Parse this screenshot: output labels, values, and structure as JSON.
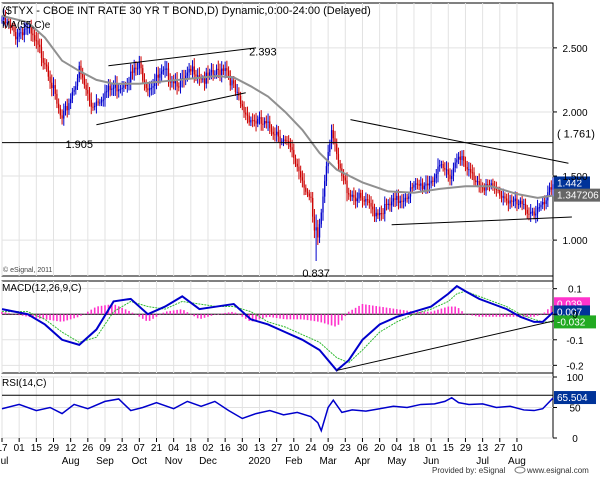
{
  "title": "($TYX - CBOE INT RATE 30 YR T BOND,D) Dynamic,0:00-24:00 (Delayed)",
  "footer": {
    "provided_by": "Provided by: eSignal",
    "url": "www.esignal.com",
    "copyright": "© eSignal, 2011"
  },
  "colors": {
    "up": "#0000cc",
    "down": "#cc0000",
    "ma": "#909090",
    "macd_line": "#0000cc",
    "macd_hist": "#ff33cc",
    "macd_signal": "#33bb33",
    "rsi": "#0000cc",
    "trend": "#000000",
    "current": "#003399",
    "ma_badge": "#666666",
    "signal_badge": "#22aa22"
  },
  "chart_data": [
    {
      "type": "candlestick",
      "panel": "price",
      "indicator_label": "MA(55,C)e",
      "ylim": [
        0.72,
        2.85
      ],
      "yticks": [
        1.0,
        1.5,
        2.0,
        2.5
      ],
      "ytick_labels": [
        "1.000",
        "1.500",
        "2.000",
        "2.500"
      ],
      "anchors": [
        [
          0,
          2.72
        ],
        [
          8,
          2.6
        ],
        [
          14,
          2.66
        ],
        [
          20,
          2.52
        ],
        [
          26,
          2.38
        ],
        [
          32,
          2.05
        ],
        [
          35,
          1.92
        ],
        [
          40,
          2.12
        ],
        [
          45,
          2.32
        ],
        [
          52,
          2.05
        ],
        [
          60,
          2.15
        ],
        [
          70,
          2.22
        ],
        [
          80,
          2.35
        ],
        [
          85,
          2.2
        ],
        [
          95,
          2.3
        ],
        [
          105,
          2.22
        ],
        [
          112,
          2.34
        ],
        [
          118,
          2.25
        ],
        [
          125,
          2.3
        ],
        [
          130,
          2.37
        ],
        [
          135,
          2.18
        ],
        [
          140,
          2.02
        ],
        [
          145,
          1.95
        ],
        [
          152,
          1.9
        ],
        [
          160,
          1.85
        ],
        [
          168,
          1.7
        ],
        [
          172,
          1.58
        ],
        [
          176,
          1.45
        ],
        [
          180,
          1.28
        ],
        [
          183,
          0.92
        ],
        [
          186,
          1.22
        ],
        [
          189,
          1.62
        ],
        [
          192,
          1.88
        ],
        [
          194,
          1.7
        ],
        [
          197,
          1.52
        ],
        [
          202,
          1.38
        ],
        [
          210,
          1.3
        ],
        [
          218,
          1.22
        ],
        [
          224,
          1.25
        ],
        [
          232,
          1.32
        ],
        [
          240,
          1.4
        ],
        [
          248,
          1.45
        ],
        [
          256,
          1.55
        ],
        [
          262,
          1.52
        ],
        [
          266,
          1.7
        ],
        [
          270,
          1.55
        ],
        [
          276,
          1.48
        ],
        [
          282,
          1.42
        ],
        [
          288,
          1.38
        ],
        [
          294,
          1.33
        ],
        [
          300,
          1.27
        ],
        [
          305,
          1.25
        ],
        [
          310,
          1.22
        ],
        [
          315,
          1.25
        ],
        [
          318,
          1.33
        ],
        [
          321,
          1.44
        ]
      ],
      "series": [
        {
          "name": "MA(55,C)e",
          "values": [
            [
              0,
              2.75
            ],
            [
              15,
              2.7
            ],
            [
              25,
              2.58
            ],
            [
              35,
              2.4
            ],
            [
              45,
              2.32
            ],
            [
              55,
              2.25
            ],
            [
              65,
              2.22
            ],
            [
              80,
              2.22
            ],
            [
              95,
              2.24
            ],
            [
              110,
              2.26
            ],
            [
              125,
              2.28
            ],
            [
              135,
              2.27
            ],
            [
              145,
              2.2
            ],
            [
              155,
              2.12
            ],
            [
              165,
              2.0
            ],
            [
              175,
              1.86
            ],
            [
              185,
              1.68
            ],
            [
              195,
              1.55
            ],
            [
              210,
              1.45
            ],
            [
              225,
              1.38
            ],
            [
              240,
              1.37
            ],
            [
              255,
              1.4
            ],
            [
              270,
              1.42
            ],
            [
              285,
              1.42
            ],
            [
              300,
              1.36
            ],
            [
              312,
              1.33
            ],
            [
              321,
              1.347
            ]
          ]
        }
      ],
      "annotations": [
        {
          "text": "2.393",
          "x": 152,
          "y": 2.393
        },
        {
          "text": "1.905",
          "x": 45,
          "y": 1.905
        },
        {
          "text": "0.837",
          "x": 183,
          "y": 0.837
        },
        {
          "text": "( 1.761)",
          "x": 300,
          "y": 1.761
        }
      ],
      "hline": 1.761,
      "trendlines": [
        [
          [
            55,
            1.9
          ],
          [
            142,
            2.15
          ]
        ],
        [
          [
            62,
            2.36
          ],
          [
            148,
            2.5
          ]
        ],
        [
          [
            203,
            1.94
          ],
          [
            330,
            1.6
          ]
        ],
        [
          [
            227,
            1.12
          ],
          [
            332,
            1.18
          ]
        ]
      ],
      "badges": [
        {
          "text": "1.442",
          "y": 1.442,
          "kind": "current"
        },
        {
          "text": "1.347206",
          "y": 1.347,
          "kind": "ma"
        }
      ]
    },
    {
      "type": "line",
      "panel": "macd",
      "indicator_label": "MACD(12,26,9,C)",
      "ylim": [
        -0.23,
        0.13
      ],
      "yticks": [
        0.1,
        0,
        -0.1,
        -0.2
      ],
      "ytick_labels": [
        "0.1",
        "0",
        "-0.1",
        "-0.2"
      ],
      "series": [
        {
          "name": "MACD",
          "values": [
            [
              0,
              0.02
            ],
            [
              15,
              0.0
            ],
            [
              25,
              -0.04
            ],
            [
              35,
              -0.1
            ],
            [
              45,
              -0.12
            ],
            [
              55,
              -0.06
            ],
            [
              65,
              0.05
            ],
            [
              75,
              0.06
            ],
            [
              85,
              0.0
            ],
            [
              95,
              0.03
            ],
            [
              105,
              0.07
            ],
            [
              115,
              0.02
            ],
            [
              125,
              0.03
            ],
            [
              135,
              0.04
            ],
            [
              145,
              -0.02
            ],
            [
              155,
              -0.04
            ],
            [
              165,
              -0.07
            ],
            [
              175,
              -0.1
            ],
            [
              185,
              -0.14
            ],
            [
              195,
              -0.22
            ],
            [
              202,
              -0.18
            ],
            [
              210,
              -0.1
            ],
            [
              220,
              -0.04
            ],
            [
              230,
              -0.01
            ],
            [
              240,
              0.01
            ],
            [
              250,
              0.03
            ],
            [
              260,
              0.08
            ],
            [
              265,
              0.11
            ],
            [
              270,
              0.09
            ],
            [
              278,
              0.06
            ],
            [
              286,
              0.04
            ],
            [
              294,
              0.02
            ],
            [
              302,
              -0.01
            ],
            [
              310,
              -0.03
            ],
            [
              315,
              -0.03
            ],
            [
              321,
              0.007
            ]
          ]
        },
        {
          "name": "Signal",
          "values": [
            [
              0,
              0.01
            ],
            [
              15,
              0.01
            ],
            [
              25,
              -0.02
            ],
            [
              35,
              -0.07
            ],
            [
              45,
              -0.11
            ],
            [
              55,
              -0.09
            ],
            [
              65,
              0.01
            ],
            [
              75,
              0.05
            ],
            [
              85,
              0.03
            ],
            [
              95,
              0.02
            ],
            [
              105,
              0.05
            ],
            [
              115,
              0.04
            ],
            [
              125,
              0.03
            ],
            [
              135,
              0.03
            ],
            [
              145,
              0.01
            ],
            [
              155,
              -0.03
            ],
            [
              165,
              -0.05
            ],
            [
              175,
              -0.08
            ],
            [
              185,
              -0.11
            ],
            [
              195,
              -0.17
            ],
            [
              202,
              -0.19
            ],
            [
              210,
              -0.14
            ],
            [
              220,
              -0.07
            ],
            [
              230,
              -0.03
            ],
            [
              240,
              0.0
            ],
            [
              250,
              0.02
            ],
            [
              260,
              0.05
            ],
            [
              265,
              0.08
            ],
            [
              270,
              0.09
            ],
            [
              278,
              0.07
            ],
            [
              286,
              0.05
            ],
            [
              294,
              0.03
            ],
            [
              302,
              0.0
            ],
            [
              310,
              -0.02
            ],
            [
              315,
              -0.03
            ],
            [
              321,
              -0.032
            ]
          ]
        }
      ],
      "trendlines": [
        [
          [
            195,
            -0.22
          ],
          [
            332,
            -0.01
          ]
        ]
      ],
      "badges": [
        {
          "text": "0.039",
          "y": 0.039,
          "kind": "hist"
        },
        {
          "text": "0.007",
          "y": 0.007,
          "kind": "current"
        },
        {
          "text": "-0.032",
          "y": -0.032,
          "kind": "signal"
        }
      ]
    },
    {
      "type": "line",
      "panel": "rsi",
      "indicator_label": "RSI(14,C)",
      "ylim": [
        0,
        100
      ],
      "yticks": [
        100,
        50,
        0
      ],
      "ytick_labels": [
        "100",
        "50",
        "0"
      ],
      "series": [
        {
          "name": "RSI",
          "values": [
            [
              0,
              48
            ],
            [
              10,
              55
            ],
            [
              20,
              45
            ],
            [
              28,
              50
            ],
            [
              35,
              40
            ],
            [
              42,
              55
            ],
            [
              50,
              48
            ],
            [
              60,
              60
            ],
            [
              68,
              64
            ],
            [
              75,
              45
            ],
            [
              82,
              50
            ],
            [
              90,
              58
            ],
            [
              100,
              48
            ],
            [
              108,
              60
            ],
            [
              116,
              52
            ],
            [
              124,
              60
            ],
            [
              132,
              45
            ],
            [
              140,
              32
            ],
            [
              148,
              40
            ],
            [
              156,
              45
            ],
            [
              164,
              38
            ],
            [
              172,
              42
            ],
            [
              180,
              35
            ],
            [
              184,
              25
            ],
            [
              186,
              12
            ],
            [
              190,
              50
            ],
            [
              193,
              62
            ],
            [
              198,
              42
            ],
            [
              204,
              46
            ],
            [
              212,
              44
            ],
            [
              220,
              48
            ],
            [
              228,
              52
            ],
            [
              236,
              50
            ],
            [
              244,
              55
            ],
            [
              252,
              56
            ],
            [
              258,
              60
            ],
            [
              262,
              66
            ],
            [
              266,
              58
            ],
            [
              272,
              55
            ],
            [
              280,
              56
            ],
            [
              288,
              50
            ],
            [
              296,
              52
            ],
            [
              304,
              46
            ],
            [
              310,
              45
            ],
            [
              315,
              48
            ],
            [
              321,
              65.504
            ]
          ]
        }
      ],
      "hlines": [
        70
      ],
      "badges": [
        {
          "text": "65.504",
          "y": 65.504,
          "kind": "current"
        }
      ]
    }
  ],
  "x_axis": {
    "labels": [
      {
        "x": 0,
        "text": "17",
        "row2": "Jul"
      },
      {
        "x": 10,
        "text": "01"
      },
      {
        "x": 20,
        "text": "15"
      },
      {
        "x": 30,
        "text": "29"
      },
      {
        "x": 40,
        "text": "12",
        "row2": "Aug"
      },
      {
        "x": 50,
        "text": "26"
      },
      {
        "x": 60,
        "text": "09",
        "row2": "Sep"
      },
      {
        "x": 70,
        "text": "23"
      },
      {
        "x": 80,
        "text": "07",
        "row2": "Oct"
      },
      {
        "x": 90,
        "text": "21"
      },
      {
        "x": 100,
        "text": "04",
        "row2": "Nov"
      },
      {
        "x": 110,
        "text": "18"
      },
      {
        "x": 120,
        "text": "02",
        "row2": "Dec"
      },
      {
        "x": 130,
        "text": "16"
      },
      {
        "x": 140,
        "text": "30"
      },
      {
        "x": 150,
        "text": "13",
        "row2": "2020"
      },
      {
        "x": 160,
        "text": "27"
      },
      {
        "x": 170,
        "text": "10",
        "row2": "Feb"
      },
      {
        "x": 180,
        "text": "24"
      },
      {
        "x": 190,
        "text": "09",
        "row2": "Mar"
      },
      {
        "x": 200,
        "text": "23"
      },
      {
        "x": 210,
        "text": "06",
        "row2": "Apr"
      },
      {
        "x": 220,
        "text": "20"
      },
      {
        "x": 230,
        "text": "04",
        "row2": "May"
      },
      {
        "x": 240,
        "text": "18"
      },
      {
        "x": 250,
        "text": "01",
        "row2": "Jun"
      },
      {
        "x": 260,
        "text": "15"
      },
      {
        "x": 270,
        "text": "29"
      },
      {
        "x": 280,
        "text": "13",
        "row2": "Jul"
      },
      {
        "x": 290,
        "text": "27"
      },
      {
        "x": 300,
        "text": "10",
        "row2": "Aug"
      }
    ]
  }
}
